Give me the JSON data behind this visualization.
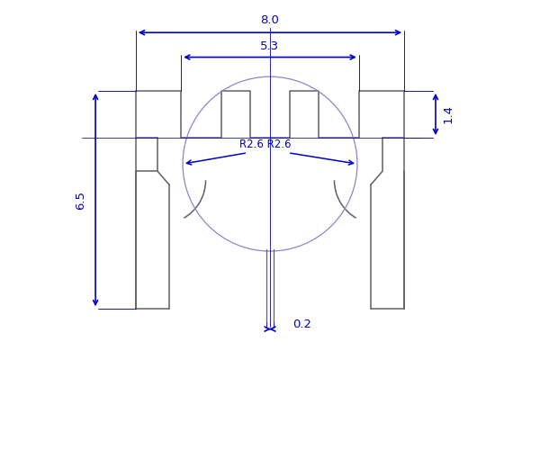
{
  "bg_color": "#ffffff",
  "line_color": "#606060",
  "dim_color": "#0000cc",
  "fig_width": 6.0,
  "fig_height": 5.0,
  "dpi": 100,
  "dims": {
    "8.0": "8.0",
    "5.3": "5.3",
    "6.5": "6.5",
    "1.4": "1.4",
    "0.2": "0.2",
    "R2.6": "R2.6 R2.6"
  },
  "xlim": [
    0,
    10
  ],
  "ylim": [
    0,
    10
  ]
}
